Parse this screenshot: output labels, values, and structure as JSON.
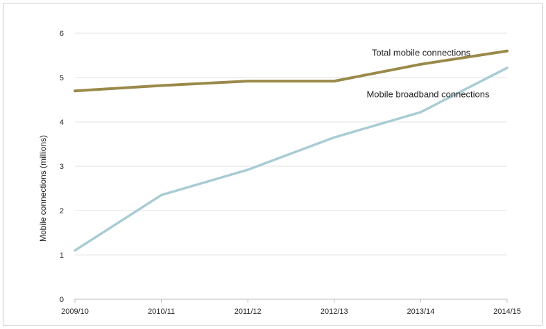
{
  "chart_data": {
    "type": "line",
    "title": "",
    "xlabel": "",
    "ylabel": "Mobile connections (millions)",
    "categories": [
      "2009/10",
      "2010/11",
      "2011/12",
      "2012/13",
      "2013/14",
      "2014/15"
    ],
    "ylim": [
      0,
      6
    ],
    "yticks": [
      "0",
      "1",
      "2",
      "3",
      "4",
      "5",
      "6"
    ],
    "grid": true,
    "legend": "none",
    "series": [
      {
        "name": "Total mobile connections",
        "values": [
          4.7,
          4.82,
          4.92,
          4.92,
          5.3,
          5.6
        ],
        "color": "#9a8a4a"
      },
      {
        "name": "Mobile broadband connections",
        "values": [
          1.1,
          2.35,
          2.92,
          3.65,
          4.22,
          5.22
        ],
        "color": "#a9ccd4"
      }
    ]
  }
}
